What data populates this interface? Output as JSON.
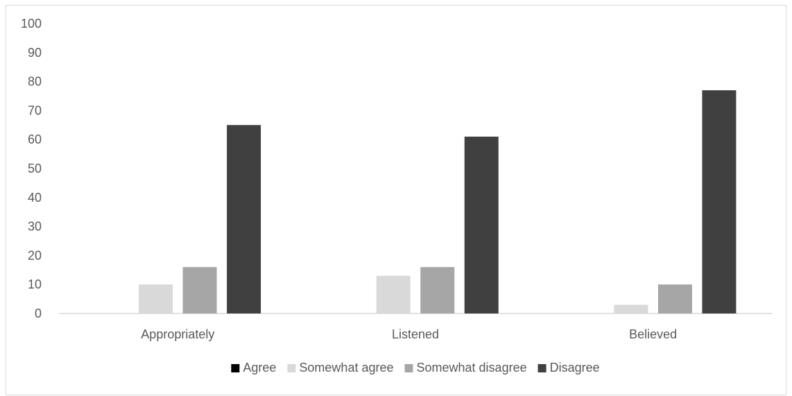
{
  "chart_data": {
    "type": "bar",
    "title": "",
    "xlabel": "",
    "ylabel": "",
    "categories": [
      "Appropriately",
      "Listened",
      "Believed"
    ],
    "ylim": [
      0,
      100
    ],
    "yticks": [
      0,
      10,
      20,
      30,
      40,
      50,
      60,
      70,
      80,
      90,
      100
    ],
    "grid": false,
    "legend_position": "bottom",
    "series": [
      {
        "name": "Agree",
        "color": "#000000",
        "values": [
          0,
          0,
          0
        ]
      },
      {
        "name": "Somewhat agree",
        "color": "#d9d9d9",
        "values": [
          10,
          13,
          3
        ]
      },
      {
        "name": "Somewhat disagree",
        "color": "#a6a6a6",
        "values": [
          16,
          16,
          10
        ]
      },
      {
        "name": "Disagree",
        "color": "#404040",
        "values": [
          65,
          61,
          77
        ]
      }
    ]
  }
}
